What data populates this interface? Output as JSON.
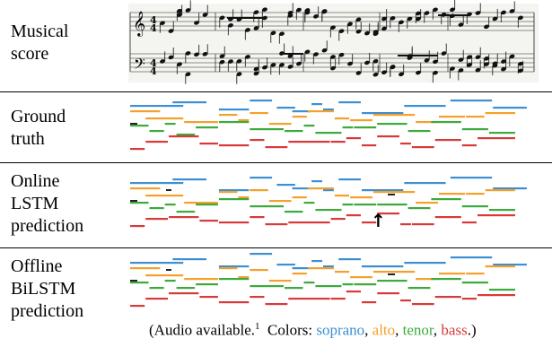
{
  "rows": [
    {
      "key": "score",
      "label": "Musical\nscore"
    },
    {
      "key": "ground_truth",
      "label": "Ground\ntruth"
    },
    {
      "key": "online",
      "label": "Online\nLSTM\nprediction"
    },
    {
      "key": "offline",
      "label": "Offline\nBiLSTM\nprediction"
    }
  ],
  "score": {
    "time_signature": "4/4",
    "treble_clef": "𝄞",
    "bass_clef": "𝄢"
  },
  "colors": {
    "soprano": "#3d8fd1",
    "alto": "#f5a02a",
    "tenor": "#3caa3c",
    "bass": "#d83a3a",
    "error": "#222222"
  },
  "caption": {
    "prefix": "(Audio available.",
    "footnote": "1",
    "colors_label": "Colors:",
    "soprano": "soprano",
    "alto": "alto",
    "tenor": "tenor",
    "bass": "bass",
    "suffix": ".)"
  },
  "voices": {
    "soprano": [
      [
        0,
        14
      ],
      [
        11,
        9
      ],
      [
        23,
        8
      ],
      [
        31,
        6
      ],
      [
        38,
        5
      ],
      [
        42,
        5
      ],
      [
        47,
        3
      ],
      [
        50,
        3
      ],
      [
        54,
        6
      ],
      [
        60,
        11
      ],
      [
        71,
        11
      ],
      [
        83,
        11
      ],
      [
        94,
        9
      ]
    ],
    "alto": [
      [
        0,
        8
      ],
      [
        4,
        10
      ],
      [
        14,
        9
      ],
      [
        23,
        5
      ],
      [
        28,
        3
      ],
      [
        31,
        5
      ],
      [
        36,
        6
      ],
      [
        42,
        4
      ],
      [
        46,
        7
      ],
      [
        53,
        4
      ],
      [
        57,
        6
      ],
      [
        63,
        11
      ],
      [
        74,
        6
      ],
      [
        80,
        7
      ],
      [
        87,
        5
      ],
      [
        92,
        8
      ]
    ],
    "tenor": [
      [
        0,
        5
      ],
      [
        5,
        4
      ],
      [
        9,
        3
      ],
      [
        12,
        5
      ],
      [
        17,
        6
      ],
      [
        23,
        8
      ],
      [
        31,
        9
      ],
      [
        40,
        5
      ],
      [
        45,
        3
      ],
      [
        48,
        7
      ],
      [
        55,
        3
      ],
      [
        58,
        6
      ],
      [
        64,
        8
      ],
      [
        72,
        6
      ],
      [
        78,
        8
      ],
      [
        86,
        7
      ],
      [
        93,
        7
      ]
    ],
    "bass": [
      [
        0,
        4
      ],
      [
        4,
        6
      ],
      [
        10,
        8
      ],
      [
        18,
        5
      ],
      [
        23,
        8
      ],
      [
        31,
        4
      ],
      [
        35,
        6
      ],
      [
        41,
        11
      ],
      [
        52,
        4
      ],
      [
        56,
        4
      ],
      [
        60,
        4
      ],
      [
        64,
        6
      ],
      [
        70,
        3
      ],
      [
        73,
        6
      ],
      [
        79,
        7
      ],
      [
        86,
        4
      ],
      [
        90,
        10
      ]
    ]
  },
  "online_arrow": "↑"
}
